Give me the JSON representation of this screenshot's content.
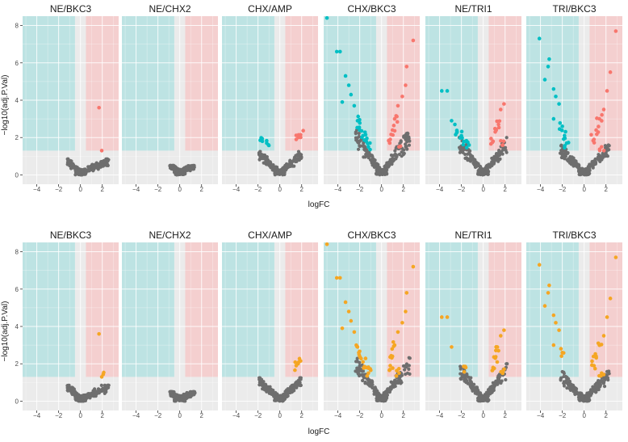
{
  "chart_data": [
    {
      "type": "scatter",
      "subtype": "volcano",
      "row": "top",
      "coloring": "direction",
      "xlabel": "logFC",
      "ylabel": "−log10(adj.P.Val)",
      "xlim": [
        -5.3,
        3.5
      ],
      "ylim": [
        -0.5,
        8.5
      ],
      "xticks": [
        -4,
        -2,
        0,
        2
      ],
      "yticks": [
        0,
        2,
        4,
        6,
        8
      ],
      "xtick_labels": [
        "−4",
        "−2",
        "0",
        "2"
      ],
      "ytick_labels": [
        "0",
        "2",
        "4",
        "6",
        "8"
      ],
      "fc_threshold": 0.5,
      "p_threshold": 1.3,
      "colors": {
        "up": "#F8766D",
        "down": "#00BFC4",
        "ns": "#6e6e6e",
        "down_region": "#bde3e3",
        "up_region": "#f4cfcf",
        "ns_region": "#ebebeb",
        "grid": "#ffffff",
        "other": "#F5A623"
      },
      "panels": [
        {
          "title": "NE/BKC3",
          "ns_x_range": [
            -1.2,
            2.6
          ],
          "ns_peak": 0.85,
          "highlight_points": [
            [
              1.7,
              3.6,
              "up"
            ],
            [
              1.95,
              1.3,
              "up"
            ]
          ]
        },
        {
          "title": "NE/CHX2",
          "ns_x_range": [
            -0.9,
            1.4
          ],
          "ns_peak": 0.5,
          "highlight_points": []
        },
        {
          "title": "CHX/AMP",
          "ns_x_range": [
            -1.9,
            2.0
          ],
          "ns_peak": 1.25,
          "highlight_points": [
            [
              -1.6,
              1.8,
              "down"
            ],
            [
              -1.2,
              1.7,
              "down"
            ],
            [
              1.5,
              1.9,
              "up"
            ],
            [
              1.9,
              2.15,
              "up"
            ]
          ]
        },
        {
          "title": "CHX/BKC3",
          "ns_x_range": [
            -2.4,
            2.6
          ],
          "ns_peak": 2.4,
          "highlight_points": [
            [
              -5.0,
              8.4,
              "down"
            ],
            [
              -4.1,
              6.6,
              "down"
            ],
            [
              -3.8,
              6.6,
              "down"
            ],
            [
              -3.3,
              5.3,
              "down"
            ],
            [
              -3.0,
              4.8,
              "down"
            ],
            [
              -2.8,
              4.3,
              "down"
            ],
            [
              -2.5,
              3.7,
              "down"
            ],
            [
              -3.6,
              3.9,
              "down"
            ],
            [
              -2.2,
              2.9,
              "down"
            ],
            [
              -2.0,
              2.4,
              "down"
            ],
            [
              -1.7,
              2.1,
              "down"
            ],
            [
              -1.4,
              1.8,
              "down"
            ],
            [
              -1.2,
              1.5,
              "down"
            ],
            [
              2.3,
              5.8,
              "up"
            ],
            [
              2.9,
              7.2,
              "up"
            ],
            [
              2.2,
              4.8,
              "up"
            ],
            [
              1.9,
              4.2,
              "up"
            ],
            [
              1.5,
              3.7,
              "up"
            ],
            [
              1.2,
              3.0,
              "up"
            ],
            [
              1.0,
              2.4,
              "up"
            ],
            [
              0.8,
              1.9,
              "up"
            ],
            [
              1.6,
              1.5,
              "up"
            ]
          ]
        },
        {
          "title": "NE/TRI1",
          "ns_x_range": [
            -2.2,
            2.2
          ],
          "ns_peak": 2.0,
          "highlight_points": [
            [
              -3.8,
              4.5,
              "down"
            ],
            [
              -3.3,
              4.5,
              "down"
            ],
            [
              -2.9,
              2.9,
              "down"
            ],
            [
              -2.6,
              2.7,
              "down"
            ],
            [
              -2.4,
              2.3,
              "down"
            ],
            [
              -2.0,
              2.1,
              "down"
            ],
            [
              -1.6,
              1.8,
              "down"
            ],
            [
              -1.3,
              1.6,
              "down"
            ],
            [
              1.9,
              3.8,
              "up"
            ],
            [
              1.6,
              3.5,
              "up"
            ],
            [
              1.4,
              2.7,
              "up"
            ],
            [
              1.1,
              2.3,
              "up"
            ],
            [
              0.9,
              1.8,
              "up"
            ],
            [
              1.8,
              1.6,
              "up"
            ]
          ]
        },
        {
          "title": "TRI/BKC3",
          "ns_x_range": [
            -2.2,
            2.3
          ],
          "ns_peak": 1.6,
          "highlight_points": [
            [
              -4.1,
              7.3,
              "down"
            ],
            [
              -3.2,
              6.2,
              "down"
            ],
            [
              -3.3,
              5.8,
              "down"
            ],
            [
              -3.6,
              5.1,
              "down"
            ],
            [
              -2.8,
              4.6,
              "down"
            ],
            [
              -2.6,
              4.2,
              "down"
            ],
            [
              -2.3,
              3.8,
              "down"
            ],
            [
              -2.8,
              3.0,
              "down"
            ],
            [
              -2.0,
              2.6,
              "down"
            ],
            [
              -1.8,
              2.1,
              "down"
            ],
            [
              -1.6,
              1.7,
              "down"
            ],
            [
              2.9,
              7.7,
              "up"
            ],
            [
              2.4,
              5.5,
              "up"
            ],
            [
              2.1,
              4.5,
              "up"
            ],
            [
              1.8,
              3.5,
              "up"
            ],
            [
              1.4,
              3.0,
              "up"
            ],
            [
              1.1,
              2.4,
              "up"
            ],
            [
              0.9,
              1.9,
              "up"
            ],
            [
              1.6,
              1.5,
              "up"
            ]
          ]
        }
      ]
    },
    {
      "type": "scatter",
      "subtype": "volcano",
      "row": "bottom",
      "coloring": "highlight",
      "xlabel": "logFC",
      "ylabel": "−log10(adj.P.Val)",
      "xlim": [
        -5.3,
        3.5
      ],
      "ylim": [
        -0.5,
        8.5
      ],
      "xticks": [
        -4,
        -2,
        0,
        2
      ],
      "yticks": [
        0,
        2,
        4,
        6,
        8
      ],
      "xtick_labels": [
        "−4",
        "−2",
        "0",
        "2"
      ],
      "ytick_labels": [
        "0",
        "2",
        "4",
        "6",
        "8"
      ],
      "fc_threshold": 0.5,
      "p_threshold": 1.3,
      "colors": {
        "up": "#F8766D",
        "down": "#00BFC4",
        "ns": "#6e6e6e",
        "down_region": "#bde3e3",
        "up_region": "#f4cfcf",
        "ns_region": "#ebebeb",
        "grid": "#ffffff",
        "other": "#F5A623"
      },
      "panels": [
        {
          "title": "NE/BKC3",
          "ns_x_range": [
            -1.2,
            2.6
          ],
          "ns_peak": 0.85,
          "highlight_points": [
            [
              1.7,
              3.6,
              "other"
            ],
            [
              1.95,
              1.3,
              "other"
            ]
          ]
        },
        {
          "title": "NE/CHX2",
          "ns_x_range": [
            -0.9,
            1.4
          ],
          "ns_peak": 0.5,
          "highlight_points": []
        },
        {
          "title": "CHX/AMP",
          "ns_x_range": [
            -1.9,
            2.0
          ],
          "ns_peak": 1.25,
          "highlight_points": [
            [
              1.5,
              1.9,
              "other"
            ],
            [
              1.9,
              2.15,
              "other"
            ]
          ]
        },
        {
          "title": "CHX/BKC3",
          "ns_x_range": [
            -2.4,
            2.6
          ],
          "ns_peak": 2.4,
          "highlight_points": [
            [
              -5.0,
              8.4,
              "other"
            ],
            [
              -4.1,
              6.6,
              "other"
            ],
            [
              -3.8,
              6.6,
              "other"
            ],
            [
              -3.3,
              5.3,
              "other"
            ],
            [
              -3.0,
              4.8,
              "other"
            ],
            [
              -2.8,
              4.3,
              "other"
            ],
            [
              -2.5,
              3.7,
              "other"
            ],
            [
              -3.6,
              3.9,
              "other"
            ],
            [
              -2.2,
              2.9,
              "other"
            ],
            [
              -2.0,
              2.4,
              "other"
            ],
            [
              -1.7,
              2.1,
              "other"
            ],
            [
              -1.4,
              1.8,
              "other"
            ],
            [
              -1.2,
              1.5,
              "other"
            ],
            [
              2.3,
              5.8,
              "other"
            ],
            [
              2.9,
              7.2,
              "other"
            ],
            [
              2.2,
              4.8,
              "other"
            ],
            [
              1.9,
              4.2,
              "other"
            ],
            [
              1.5,
              3.7,
              "other"
            ],
            [
              1.2,
              3.0,
              "other"
            ],
            [
              1.0,
              2.4,
              "other"
            ],
            [
              0.8,
              1.9,
              "other"
            ],
            [
              1.6,
              1.5,
              "other"
            ]
          ]
        },
        {
          "title": "NE/TRI1",
          "ns_x_range": [
            -2.2,
            2.2
          ],
          "ns_peak": 2.0,
          "highlight_points": [
            [
              -3.8,
              4.5,
              "other"
            ],
            [
              -3.3,
              4.5,
              "other"
            ],
            [
              -2.9,
              2.9,
              "other"
            ],
            [
              -1.6,
              1.8,
              "other"
            ],
            [
              1.9,
              3.8,
              "other"
            ],
            [
              1.6,
              3.5,
              "other"
            ],
            [
              1.4,
              2.7,
              "other"
            ],
            [
              1.1,
              2.3,
              "other"
            ],
            [
              0.9,
              1.8,
              "other"
            ],
            [
              1.8,
              1.6,
              "other"
            ]
          ]
        },
        {
          "title": "TRI/BKC3",
          "ns_x_range": [
            -2.2,
            2.3
          ],
          "ns_peak": 1.6,
          "highlight_points": [
            [
              -4.1,
              7.3,
              "other"
            ],
            [
              -3.2,
              6.2,
              "other"
            ],
            [
              -3.3,
              5.8,
              "other"
            ],
            [
              -3.6,
              5.1,
              "other"
            ],
            [
              -2.8,
              4.6,
              "other"
            ],
            [
              -2.6,
              4.2,
              "other"
            ],
            [
              -2.3,
              3.8,
              "other"
            ],
            [
              -2.8,
              3.0,
              "other"
            ],
            [
              -2.0,
              2.6,
              "other"
            ],
            [
              2.9,
              7.7,
              "other"
            ],
            [
              2.4,
              5.5,
              "other"
            ],
            [
              2.1,
              4.5,
              "other"
            ],
            [
              1.8,
              3.5,
              "other"
            ],
            [
              1.4,
              3.0,
              "other"
            ],
            [
              1.1,
              2.4,
              "other"
            ],
            [
              0.9,
              1.9,
              "other"
            ],
            [
              1.6,
              1.5,
              "other"
            ]
          ]
        }
      ]
    }
  ]
}
